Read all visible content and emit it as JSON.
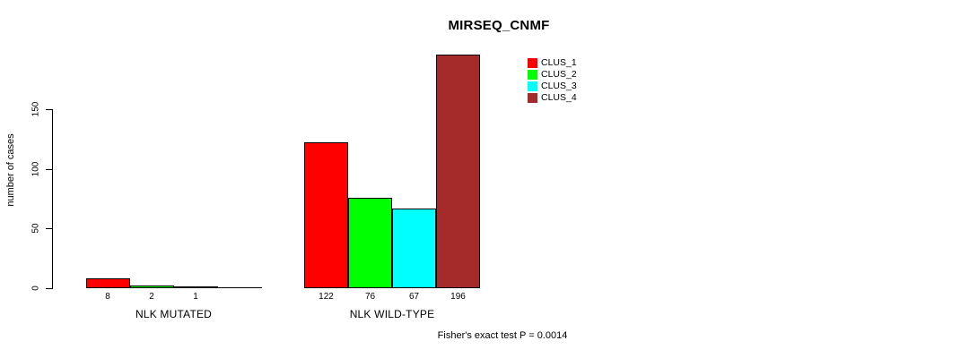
{
  "chart_data": {
    "type": "bar",
    "title": "MIRSEQ_CNMF",
    "xlabel": "",
    "ylabel": "number of cases",
    "ylim": [
      0,
      150
    ],
    "yticks": [
      0,
      50,
      100,
      150
    ],
    "grid": false,
    "legend_position": "top-right",
    "series": [
      "CLUS_1",
      "CLUS_2",
      "CLUS_3",
      "CLUS_4"
    ],
    "colors": [
      "#FF0000",
      "#00FF00",
      "#00FFFF",
      "#A52A2A"
    ],
    "groups": [
      {
        "label": "NLK MUTATED",
        "values": [
          8,
          2,
          1,
          0
        ],
        "bar_labels": [
          "8",
          "2",
          "1",
          ""
        ]
      },
      {
        "label": "NLK WILD-TYPE",
        "values": [
          122,
          76,
          67,
          196
        ],
        "bar_labels": [
          "122",
          "76",
          "67",
          "196"
        ]
      }
    ],
    "annotation": "Fisher's exact test P = 0.0014"
  }
}
